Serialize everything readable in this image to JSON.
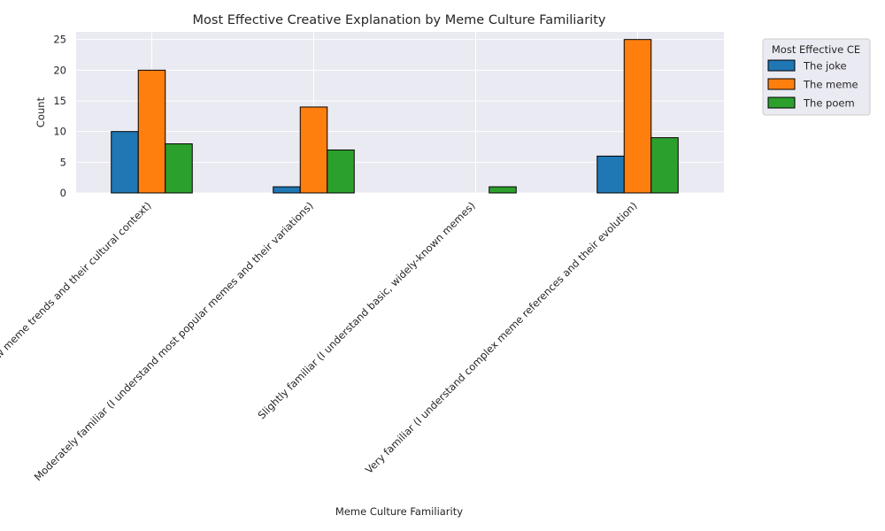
{
  "chart_data": {
    "type": "bar",
    "title": "Most Effective Creative Explanation by Meme Culture Familiarity",
    "xlabel": "Meme Culture Familiarity",
    "ylabel": "Count",
    "categories": [
      "Extremely familiar (I actively follow meme trends and their cultural context)",
      "Moderately familiar (I understand most popular memes and their variations)",
      "Slightly familiar (I understand basic, widely-known memes)",
      "Very familiar (I understand complex meme references and their evolution)"
    ],
    "series": [
      {
        "name": "The joke",
        "values": [
          10,
          1,
          0,
          6
        ],
        "color": "#1f77b4"
      },
      {
        "name": "The meme",
        "values": [
          20,
          14,
          0,
          25
        ],
        "color": "#ff7f0e"
      },
      {
        "name": "The poem",
        "values": [
          8,
          7,
          1,
          9
        ],
        "color": "#2ca02c"
      }
    ],
    "ylim": [
      0,
      26.25
    ],
    "yticks": [
      0,
      5,
      10,
      15,
      20,
      25
    ],
    "grid": true,
    "legend": {
      "title": "Most Effective CE",
      "placement": "outside-top-right"
    },
    "x_tick_rotation": 45
  }
}
